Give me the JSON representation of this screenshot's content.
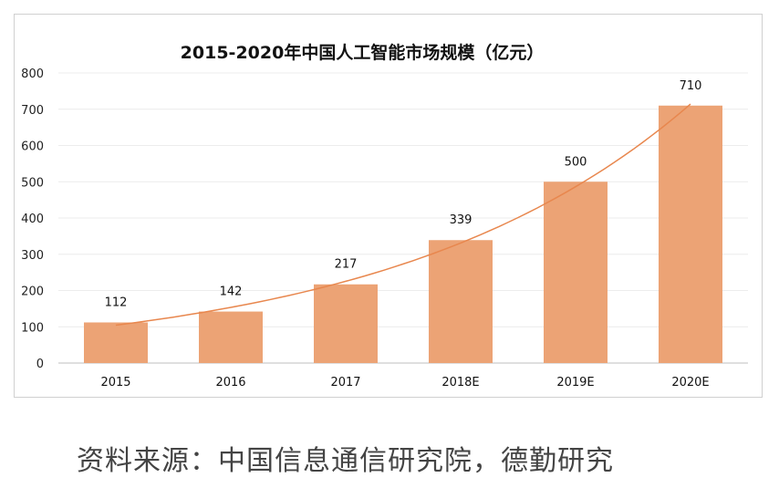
{
  "chart_data": {
    "type": "bar",
    "title": "2015-2020年中国人工智能市场规模（亿元）",
    "categories": [
      "2015",
      "2016",
      "2017",
      "2018E",
      "2019E",
      "2020E"
    ],
    "values": [
      112,
      142,
      217,
      339,
      500,
      710
    ],
    "data_labels": [
      "112",
      "142",
      "217",
      "339",
      "500",
      "710"
    ],
    "yticks": [
      "0",
      "100",
      "200",
      "300",
      "400",
      "500",
      "600",
      "700",
      "800"
    ],
    "ylim": [
      0,
      800
    ],
    "grid": true,
    "legend": "none",
    "trendline": "exponential",
    "colors": {
      "bar": "#eca375",
      "trend": "#e8874e"
    }
  },
  "source": "资料来源：中国信息通信研究院，德勤研究"
}
